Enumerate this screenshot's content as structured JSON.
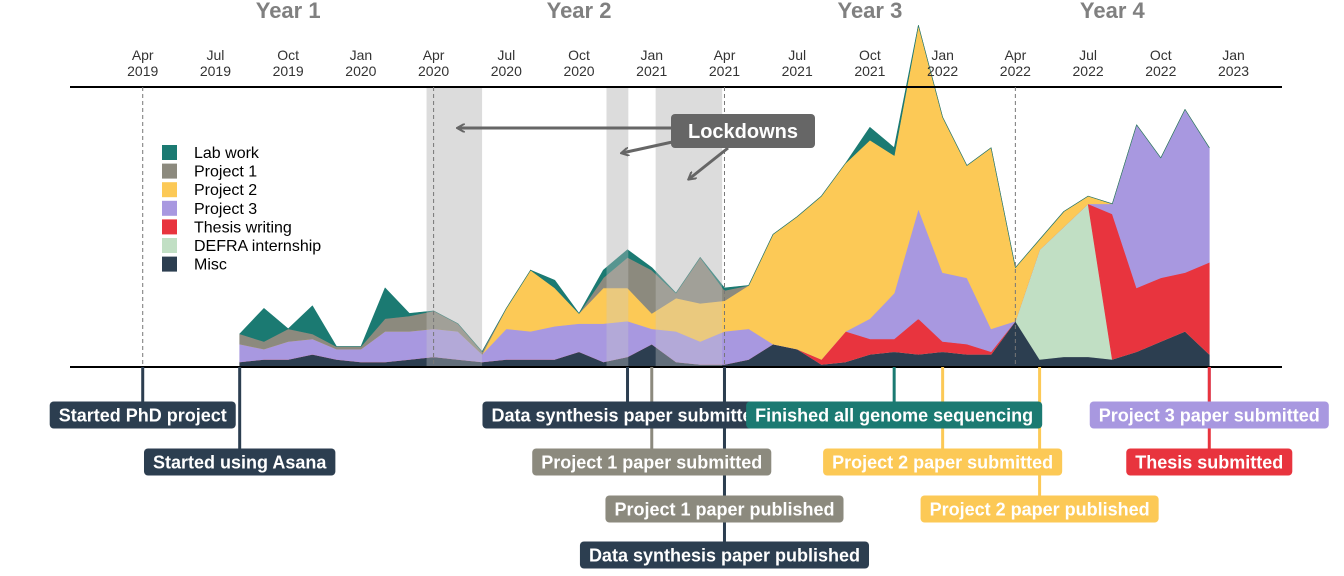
{
  "chart_data": {
    "type": "area",
    "subtype": "stacked-streamgraph-timeline",
    "title": "",
    "xlabel": "",
    "ylabel": "",
    "x_range": [
      "2019-01",
      "2023-03"
    ],
    "y_range": [
      0,
      100
    ],
    "grid": false,
    "legend_position": "top-left",
    "years": [
      {
        "label": "Year 1",
        "center": "2019-10"
      },
      {
        "label": "Year 2",
        "center": "2020-10"
      },
      {
        "label": "Year 3",
        "center": "2021-10"
      },
      {
        "label": "Year 4",
        "center": "2022-08"
      }
    ],
    "year_boundaries": [
      "2019-04",
      "2020-04",
      "2021-04",
      "2022-04"
    ],
    "ticks": [
      {
        "date": "2019-04",
        "month": "Apr",
        "year": "2019"
      },
      {
        "date": "2019-07",
        "month": "Jul",
        "year": "2019"
      },
      {
        "date": "2019-10",
        "month": "Oct",
        "year": "2019"
      },
      {
        "date": "2020-01",
        "month": "Jan",
        "year": "2020"
      },
      {
        "date": "2020-04",
        "month": "Apr",
        "year": "2020"
      },
      {
        "date": "2020-07",
        "month": "Jul",
        "year": "2020"
      },
      {
        "date": "2020-10",
        "month": "Oct",
        "year": "2020"
      },
      {
        "date": "2021-01",
        "month": "Jan",
        "year": "2021"
      },
      {
        "date": "2021-04",
        "month": "Apr",
        "year": "2021"
      },
      {
        "date": "2021-07",
        "month": "Jul",
        "year": "2021"
      },
      {
        "date": "2021-10",
        "month": "Oct",
        "year": "2021"
      },
      {
        "date": "2022-01",
        "month": "Jan",
        "year": "2022"
      },
      {
        "date": "2022-04",
        "month": "Apr",
        "year": "2022"
      },
      {
        "date": "2022-07",
        "month": "Jul",
        "year": "2022"
      },
      {
        "date": "2022-10",
        "month": "Oct",
        "year": "2022"
      },
      {
        "date": "2023-01",
        "month": "Jan",
        "year": "2023"
      }
    ],
    "lockdowns": {
      "label": "Lockdowns",
      "periods": [
        [
          "2020-03-23",
          "2020-06-01"
        ],
        [
          "2020-11-05",
          "2020-12-02"
        ],
        [
          "2021-01-06",
          "2021-03-29"
        ]
      ]
    },
    "series_order_bottom_to_top": [
      "Misc",
      "DEFRA internship",
      "Thesis writing",
      "Project 3",
      "Project 2",
      "Project 1",
      "Lab work"
    ],
    "legend": [
      "Lab work",
      "Project 1",
      "Project 2",
      "Project 3",
      "Thesis writing",
      "DEFRA internship",
      "Misc"
    ],
    "dates": [
      "2019-08",
      "2019-09",
      "2019-10",
      "2019-11",
      "2019-12",
      "2020-01",
      "2020-02",
      "2020-03",
      "2020-04",
      "2020-05",
      "2020-06",
      "2020-07",
      "2020-08",
      "2020-09",
      "2020-10",
      "2020-11",
      "2020-12",
      "2021-01",
      "2021-02",
      "2021-03",
      "2021-04",
      "2021-05",
      "2021-06",
      "2021-07",
      "2021-08",
      "2021-09",
      "2021-10",
      "2021-11",
      "2021-12",
      "2022-01",
      "2022-02",
      "2022-03",
      "2022-04",
      "2022-05",
      "2022-06",
      "2022-07",
      "2022-08",
      "2022-09",
      "2022-10",
      "2022-11",
      "2022-12"
    ],
    "series": [
      {
        "name": "Misc",
        "color": "#2c3e50",
        "values": [
          2,
          3,
          3,
          5,
          3,
          2,
          2,
          3,
          4,
          3,
          2,
          3,
          3,
          3,
          6,
          2,
          4,
          9,
          2,
          1,
          1,
          3,
          9,
          7,
          1,
          2,
          5,
          6,
          5,
          6,
          5,
          5,
          18,
          3,
          4,
          4,
          3,
          6,
          10,
          14,
          5
        ]
      },
      {
        "name": "DEFRA internship",
        "color": "#c1dfc4",
        "values": [
          0,
          0,
          0,
          0,
          0,
          0,
          0,
          0,
          0,
          0,
          0,
          0,
          0,
          0,
          0,
          0,
          0,
          0,
          0,
          0,
          0,
          0,
          0,
          0,
          0,
          0,
          0,
          0,
          0,
          0,
          0,
          0,
          0,
          43,
          51,
          60,
          0,
          0,
          0,
          0,
          0
        ]
      },
      {
        "name": "Thesis writing",
        "color": "#e8343e",
        "values": [
          0,
          0,
          0,
          0,
          0,
          0,
          0,
          0,
          0,
          0,
          0,
          0,
          0,
          0,
          0,
          0,
          0,
          0,
          0,
          0,
          0,
          0,
          0,
          0,
          2,
          12,
          6,
          5,
          14,
          4,
          4,
          1,
          0,
          0,
          0,
          0,
          57,
          25,
          25,
          23,
          36
        ]
      },
      {
        "name": "Project 3",
        "color": "#a898e0",
        "values": [
          7,
          4,
          7,
          6,
          4,
          5,
          12,
          11,
          11,
          11,
          3,
          12,
          11,
          13,
          11,
          15,
          14,
          6,
          12,
          9,
          13,
          12,
          0,
          0,
          0,
          0,
          8,
          18,
          43,
          27,
          26,
          9,
          0,
          0,
          0,
          0,
          4,
          64,
          47,
          64,
          45
        ]
      },
      {
        "name": "Project 2",
        "color": "#fcc956",
        "values": [
          0,
          0,
          0,
          0,
          0,
          0,
          0,
          0,
          0,
          0,
          0,
          8,
          24,
          15,
          4,
          14,
          13,
          6,
          13,
          15,
          12,
          17,
          43,
          52,
          64,
          66,
          70,
          54,
          72,
          61,
          44,
          71,
          21,
          4,
          6,
          3,
          0,
          0,
          0,
          0,
          0
        ]
      },
      {
        "name": "Project 1",
        "color": "#8c8a7e",
        "values": [
          4,
          3,
          5,
          2,
          1,
          1,
          5,
          6,
          7,
          3,
          1,
          0,
          0,
          0,
          0,
          4,
          12,
          17,
          2,
          18,
          4,
          0,
          0,
          0,
          0,
          0,
          0,
          0,
          0,
          0,
          0,
          0,
          0,
          0,
          0,
          0,
          0,
          0,
          0,
          0,
          0
        ]
      },
      {
        "name": "Lab work",
        "color": "#1b7a72",
        "values": [
          0,
          13,
          0,
          11,
          0,
          0,
          12,
          1,
          0,
          0,
          0,
          0,
          0,
          3,
          0,
          3,
          3,
          1,
          0,
          0,
          1,
          0,
          0,
          0,
          0,
          0,
          5,
          3,
          0,
          0,
          0,
          0,
          0,
          0,
          0,
          0,
          0,
          0,
          0,
          0,
          0
        ]
      }
    ],
    "events": [
      {
        "label": "Started PhD project",
        "date": "2019-04",
        "color": "#2c3e50",
        "row": 1
      },
      {
        "label": "Started using Asana",
        "date": "2019-08",
        "color": "#2c3e50",
        "row": 2
      },
      {
        "label": "Data synthesis paper submitted",
        "date": "2020-12",
        "color": "#2c3e50",
        "row": 1
      },
      {
        "label": "Project 1 paper submitted",
        "date": "2021-01",
        "color": "#8c8a7e",
        "row": 2
      },
      {
        "label": "Project 1 paper published",
        "date": "2021-04",
        "color": "#8c8a7e",
        "row": 3
      },
      {
        "label": "Data synthesis paper published",
        "date": "2021-04",
        "color": "#2c3e50",
        "row": 4
      },
      {
        "label": "Finished all genome sequencing",
        "date": "2021-11",
        "color": "#1b7a72",
        "row": 1
      },
      {
        "label": "Project 2 paper submitted",
        "date": "2022-01",
        "color": "#fcc956",
        "row": 2
      },
      {
        "label": "Project 2 paper published",
        "date": "2022-05",
        "color": "#fcc956",
        "row": 3
      },
      {
        "label": "Project 3 paper submitted",
        "date": "2022-12",
        "color": "#a898e0",
        "row": 1
      },
      {
        "label": "Thesis submitted",
        "date": "2022-12",
        "color": "#e8343e",
        "row": 2
      }
    ]
  }
}
